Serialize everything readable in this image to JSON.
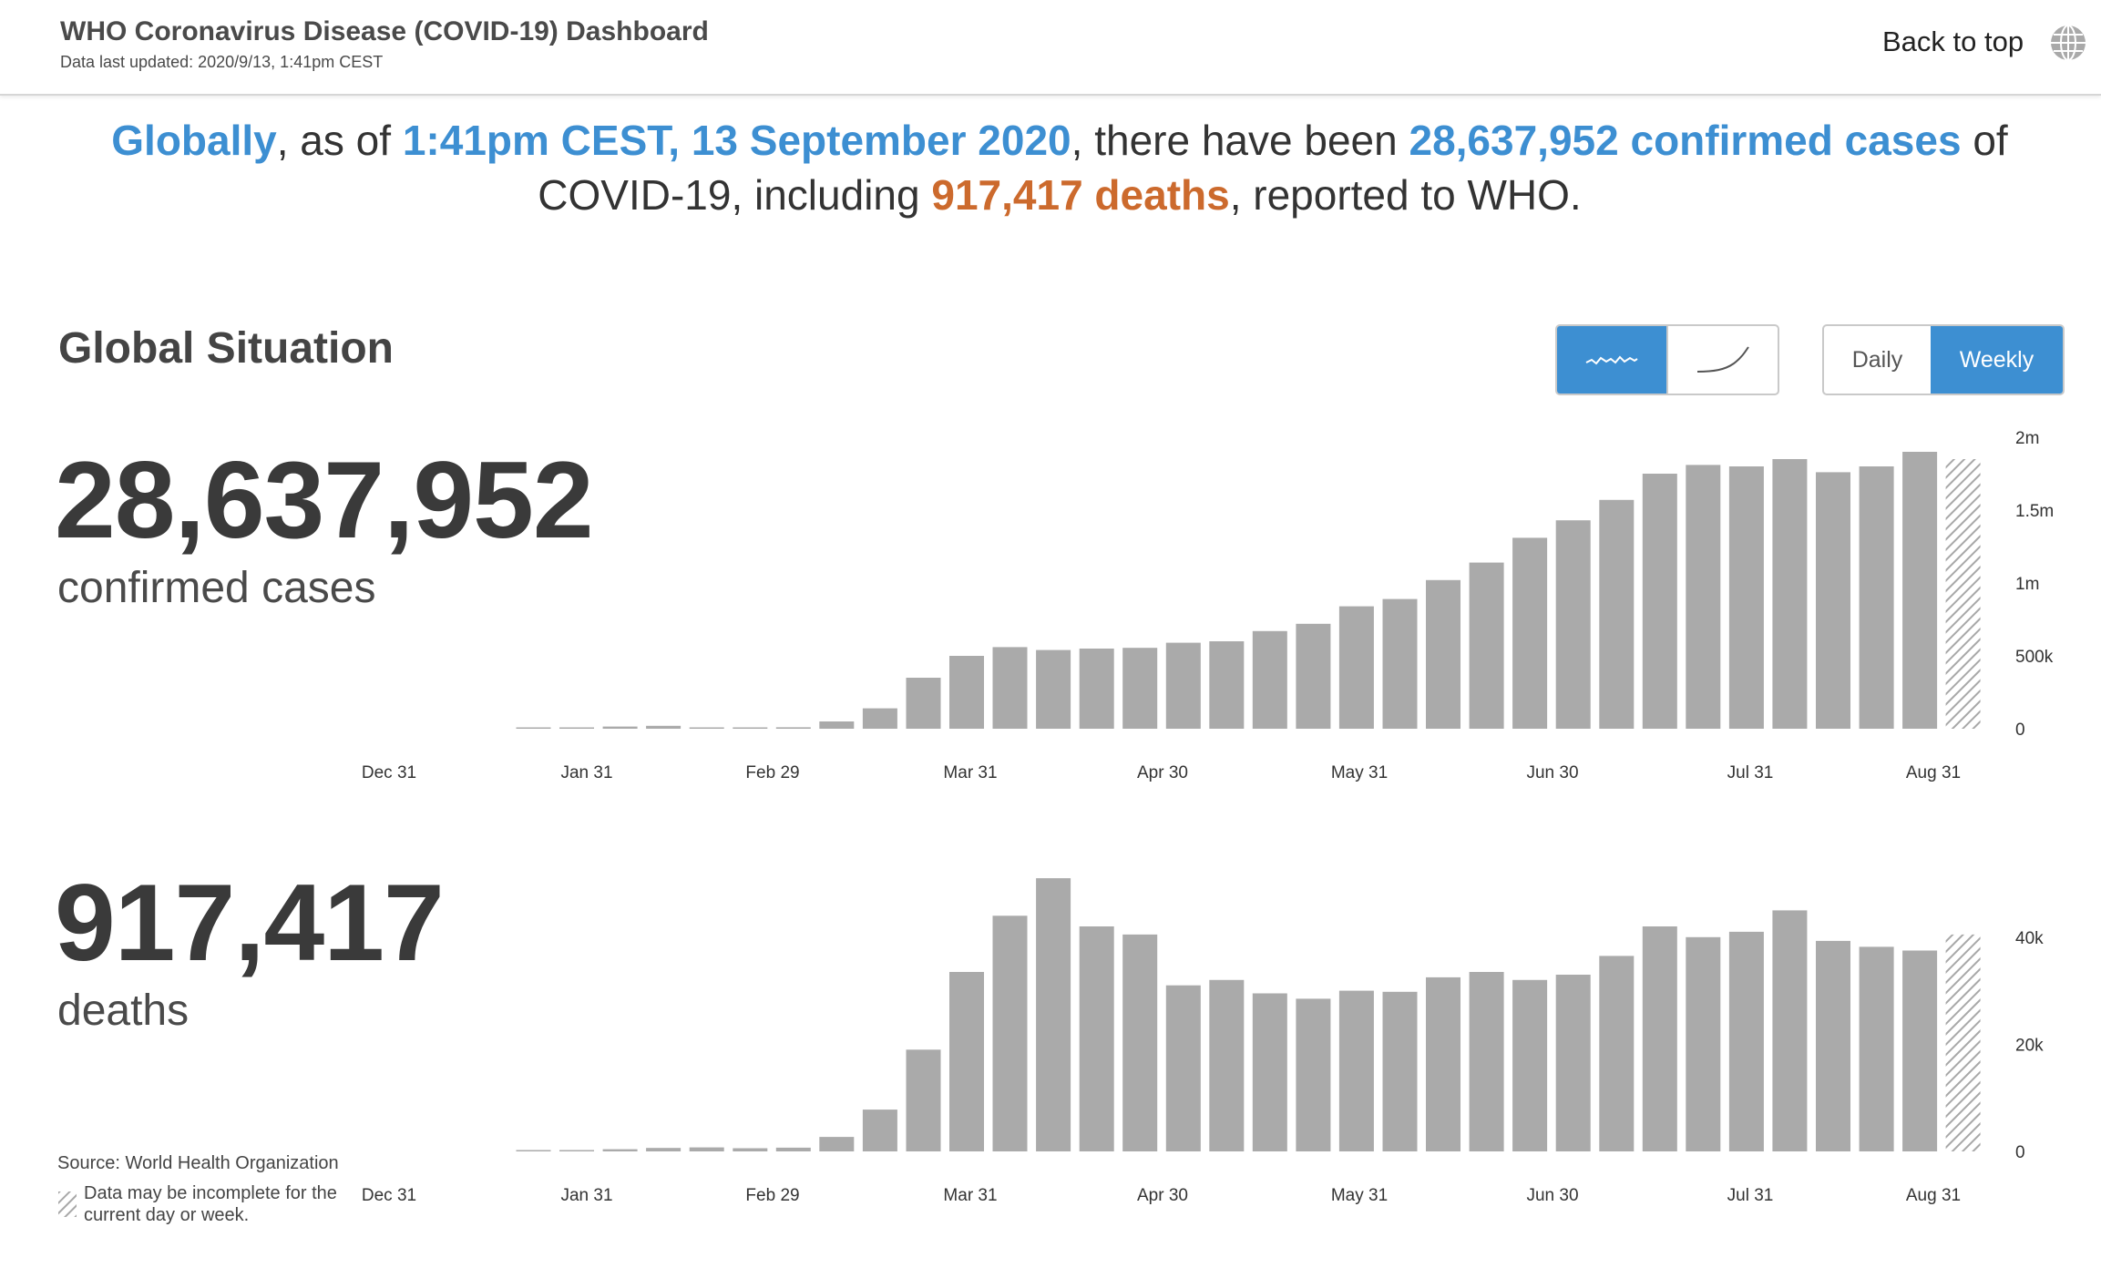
{
  "header": {
    "title": "WHO Coronavirus Disease (COVID-19) Dashboard",
    "updated": "Data last updated: 2020/9/13, 1:41pm CEST",
    "back_to_top": "Back to top",
    "globe_icon": "globe-icon"
  },
  "headline": {
    "part1": "Globally",
    "part2": ", as of ",
    "part3": "1:41pm CEST, 13 September 2020",
    "part4": ", there have been ",
    "part5": "28,637,952 confirmed cases",
    "part6": " of COVID-19, including ",
    "part7": "917,417 deaths",
    "part8": ", reported to WHO."
  },
  "section": {
    "title": "Global Situation"
  },
  "toggles": {
    "mode": [
      {
        "icon": "wavy-line-icon",
        "active": true
      },
      {
        "icon": "curve-line-icon",
        "active": false
      }
    ],
    "period": [
      {
        "label": "Daily",
        "active": false
      },
      {
        "label": "Weekly",
        "active": true
      }
    ]
  },
  "cases": {
    "total": "28,637,952",
    "label": "confirmed cases"
  },
  "deaths": {
    "total": "917,417",
    "label": "deaths"
  },
  "footer": {
    "source": "Source:  World Health Organization",
    "note": "Data may be incomplete for the current day or week."
  },
  "colors": {
    "accent": "#3d8fd2",
    "orange": "#cc6a2d",
    "bar": "#aaaaaa",
    "text": "#3f3f3f"
  },
  "chart_data": [
    {
      "type": "bar",
      "name": "confirmed cases",
      "x_ticks": [
        "Dec 31",
        "Jan 31",
        "Feb 29",
        "Mar 31",
        "Apr 30",
        "May 31",
        "Jun 30",
        "Jul 31",
        "Aug 31"
      ],
      "y_ticks": [
        "0",
        "500k",
        "1m",
        "1.5m",
        "2m"
      ],
      "y_tick_values": [
        0,
        500000,
        1000000,
        1500000,
        2000000
      ],
      "ylim": [
        0,
        2000000
      ],
      "values": [
        600,
        8000,
        15000,
        20000,
        6000,
        4000,
        10000,
        50000,
        140000,
        350000,
        500000,
        560000,
        540000,
        550000,
        555000,
        590000,
        600000,
        670000,
        720000,
        840000,
        890000,
        1020000,
        1140000,
        1310000,
        1430000,
        1570000,
        1750000,
        1810000,
        1800000,
        1850000,
        1760000,
        1800000,
        1900000,
        1850000
      ],
      "incomplete_last": true,
      "grid": false
    },
    {
      "type": "bar",
      "name": "deaths",
      "x_ticks": [
        "Dec 31",
        "Jan 31",
        "Feb 29",
        "Mar 31",
        "Apr 30",
        "May 31",
        "Jun 30",
        "Jul 31",
        "Aug 31"
      ],
      "y_ticks": [
        "0",
        "20k",
        "40k"
      ],
      "y_tick_values": [
        0,
        20000,
        40000
      ],
      "ylim": [
        0,
        50000
      ],
      "values": [
        50,
        200,
        400,
        650,
        750,
        600,
        700,
        2700,
        7800,
        19000,
        33500,
        44000,
        51000,
        42000,
        40500,
        31000,
        32000,
        29500,
        28500,
        30000,
        29800,
        32500,
        33500,
        32000,
        33000,
        36500,
        42000,
        40000,
        41000,
        45000,
        39300,
        38200,
        37500,
        40500
      ],
      "incomplete_last": true,
      "grid": false
    }
  ]
}
